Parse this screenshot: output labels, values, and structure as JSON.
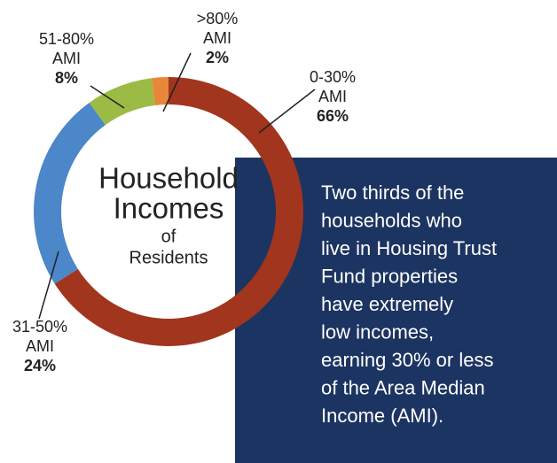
{
  "chart_data": {
    "type": "donut",
    "title": [
      "Household",
      "Incomes"
    ],
    "subtitle": [
      "of",
      "Residents"
    ],
    "categories": [
      [
        "0-30%",
        "AMI"
      ],
      [
        "31-50%",
        "AMI"
      ],
      [
        "51-80%",
        "AMI"
      ],
      [
        ">80%",
        "AMI"
      ]
    ],
    "values": [
      66,
      24,
      8,
      2
    ],
    "value_labels": [
      "66%",
      "24%",
      "8%",
      "2%"
    ],
    "colors": [
      "#a1351d",
      "#4b87c9",
      "#9cbb45",
      "#e8873a"
    ],
    "annotation": [
      "Two thirds of the",
      "households who",
      "live in Housing Trust",
      "Fund properties",
      "have extremely",
      "low incomes,",
      "earning 30% or less",
      "of the Area Median",
      "Income (AMI)."
    ]
  }
}
